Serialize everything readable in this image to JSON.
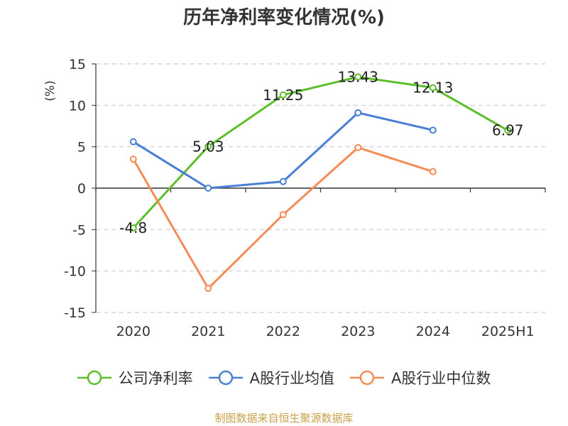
{
  "title": "历年净利率变化情况(%)",
  "source": "制图数据来自恒生聚源数据库",
  "chart_data": {
    "type": "line",
    "title": "历年净利率变化情况(%)",
    "ylabel": "(%)",
    "ylim": [
      -15,
      15
    ],
    "yticks": [
      "15",
      "10",
      "5",
      "0",
      "-5",
      "-10",
      "-15"
    ],
    "ytick_values": [
      15,
      10,
      5,
      0,
      -5,
      -10,
      -15
    ],
    "categories": [
      "2020",
      "2021",
      "2022",
      "2023",
      "2024",
      "2025H1"
    ],
    "grid": true,
    "legend_position": "bottom",
    "series": [
      {
        "name": "公司净利率",
        "color": "#5cbf2a",
        "values": [
          -4.8,
          5.03,
          11.25,
          13.43,
          12.13,
          6.97
        ],
        "labels": [
          "-4.8",
          "5.03",
          "11.25",
          "13.43",
          "12.13",
          "6.97"
        ]
      },
      {
        "name": "A股行业均值",
        "color": "#4a7fd6",
        "values": [
          5.6,
          0.0,
          0.8,
          9.1,
          7.0,
          null
        ]
      },
      {
        "name": "A股行业中位数",
        "color": "#f58c55",
        "values": [
          3.5,
          -12.1,
          -3.2,
          4.9,
          2.0,
          null
        ]
      }
    ]
  }
}
